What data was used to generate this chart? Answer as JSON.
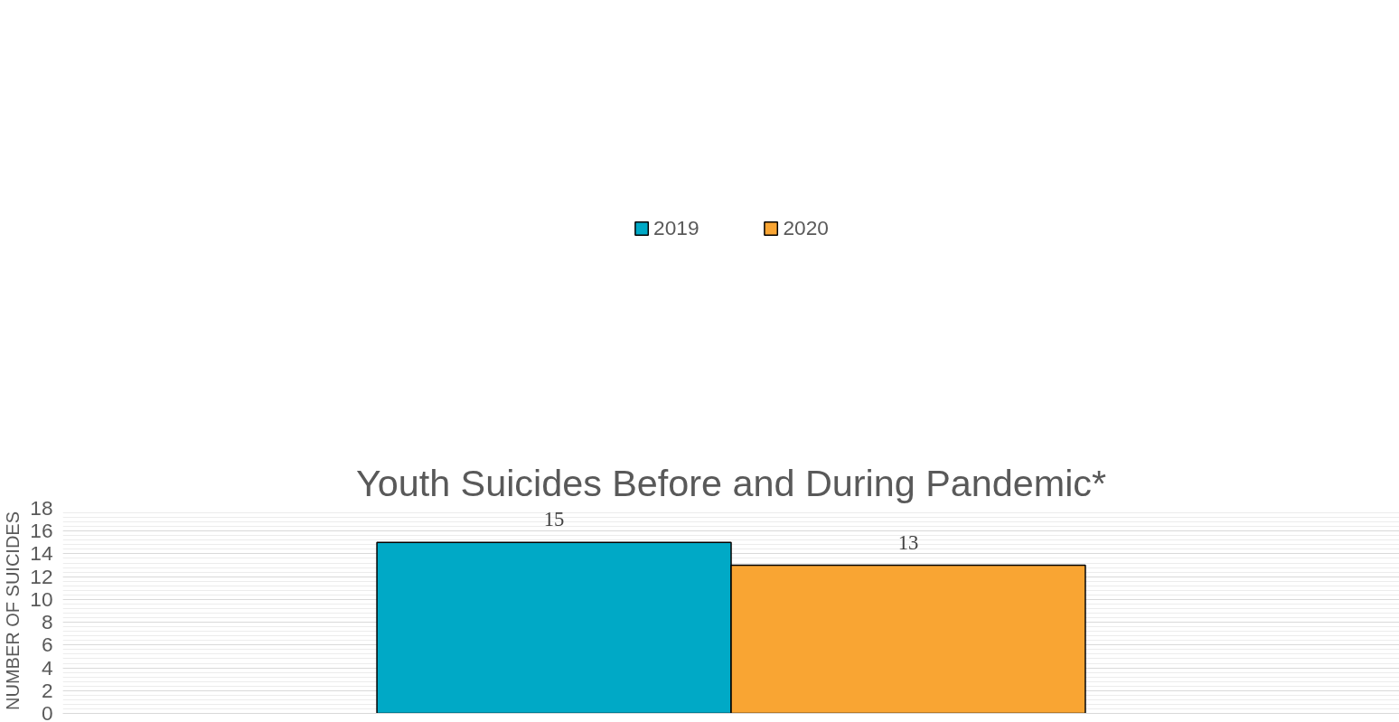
{
  "chart_data": {
    "type": "bar",
    "title": "Youth Suicides Before and During Pandemic*",
    "ylabel": "NUMBER OF SUICIDES",
    "categories": [
      null
    ],
    "series": [
      {
        "name": "2019",
        "color": "#00a9c6",
        "values": [
          15
        ]
      },
      {
        "name": "2020",
        "color": "#f9a533",
        "values": [
          13
        ]
      }
    ],
    "ylim": [
      0,
      18
    ],
    "yticks": [
      0,
      2,
      4,
      6,
      8,
      10,
      12,
      14,
      16,
      18
    ],
    "grid": "y",
    "legend": "top",
    "data_labels": true
  }
}
